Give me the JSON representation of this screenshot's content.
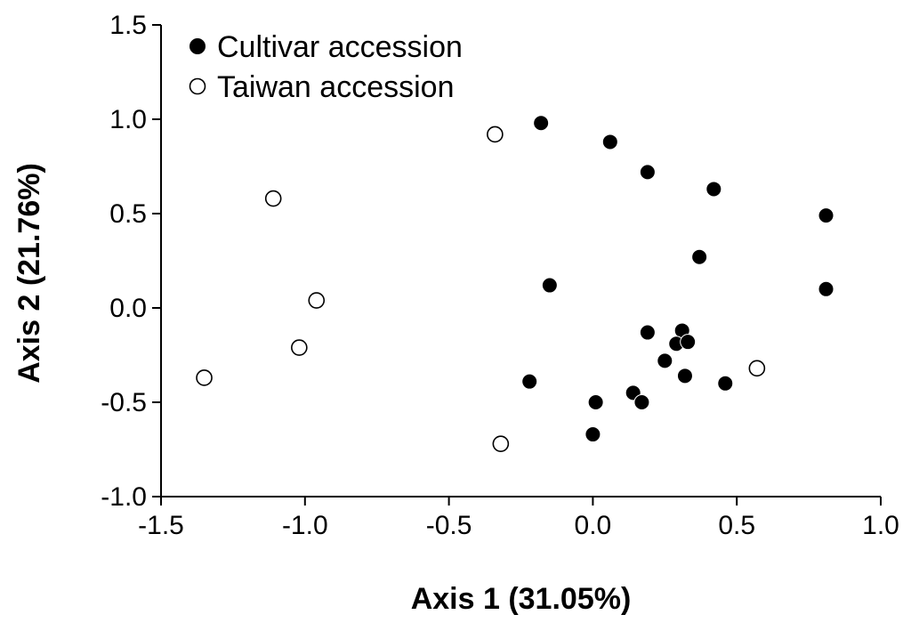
{
  "chart_data": {
    "type": "scatter",
    "xlabel": "Axis 1 (31.05%)",
    "ylabel": "Axis 2 (21.76%)",
    "xlim": [
      -1.5,
      1.0
    ],
    "ylim": [
      -1.0,
      1.5
    ],
    "x_ticks": [
      -1.5,
      -1.0,
      -0.5,
      0.0,
      0.5,
      1.0
    ],
    "y_ticks": [
      -1.0,
      -0.5,
      0.0,
      0.5,
      1.0,
      1.5
    ],
    "x_tick_labels": [
      "-1.5",
      "-1.0",
      "-0.5",
      "0.0",
      "0.5",
      "1.0"
    ],
    "y_tick_labels": [
      "-1.0",
      "-0.5",
      "0.0",
      "0.5",
      "1.0",
      "1.5"
    ],
    "grid": false,
    "legend_position": "top-left",
    "series": [
      {
        "name": "Cultivar accession",
        "marker": "filled-circle",
        "color": "#000000",
        "points": [
          {
            "x": -0.18,
            "y": 0.98
          },
          {
            "x": 0.06,
            "y": 0.88
          },
          {
            "x": 0.19,
            "y": 0.72
          },
          {
            "x": 0.42,
            "y": 0.63
          },
          {
            "x": 0.81,
            "y": 0.49
          },
          {
            "x": 0.37,
            "y": 0.27
          },
          {
            "x": -0.15,
            "y": 0.12
          },
          {
            "x": 0.81,
            "y": 0.1
          },
          {
            "x": 0.19,
            "y": -0.13
          },
          {
            "x": 0.31,
            "y": -0.12
          },
          {
            "x": 0.29,
            "y": -0.19
          },
          {
            "x": 0.33,
            "y": -0.18
          },
          {
            "x": 0.25,
            "y": -0.28
          },
          {
            "x": 0.32,
            "y": -0.36
          },
          {
            "x": 0.46,
            "y": -0.4
          },
          {
            "x": -0.22,
            "y": -0.39
          },
          {
            "x": 0.14,
            "y": -0.45
          },
          {
            "x": 0.17,
            "y": -0.5
          },
          {
            "x": 0.01,
            "y": -0.5
          },
          {
            "x": 0.0,
            "y": -0.67
          }
        ]
      },
      {
        "name": "Taiwan accession",
        "marker": "open-circle",
        "color": "#000000",
        "points": [
          {
            "x": -0.34,
            "y": 0.92
          },
          {
            "x": -1.11,
            "y": 0.58
          },
          {
            "x": -0.96,
            "y": 0.04
          },
          {
            "x": -1.02,
            "y": -0.21
          },
          {
            "x": -1.35,
            "y": -0.37
          },
          {
            "x": -0.32,
            "y": -0.72
          },
          {
            "x": 0.57,
            "y": -0.32
          }
        ]
      }
    ]
  }
}
